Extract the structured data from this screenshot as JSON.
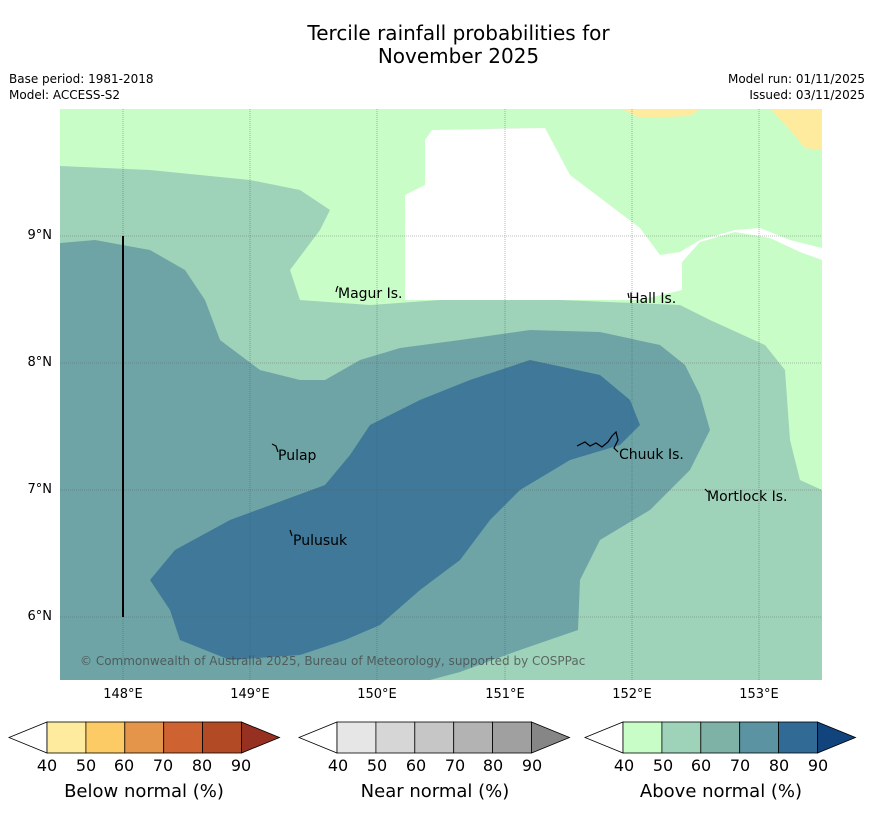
{
  "title_line1": "Tercile rainfall probabilities for",
  "title_line2": "November 2025",
  "base_period": "Base period: 1981-2018",
  "model": "Model: ACCESS-S2",
  "model_run": "Model run: 01/11/2025",
  "issued": "Issued: 03/11/2025",
  "copyright": "© Commonwealth of Australia 2025, Bureau of Meteorology, supported by COSPPac",
  "lat_labels": [
    "9°N",
    "8°N",
    "7°N",
    "6°N"
  ],
  "lon_labels": [
    "148°E",
    "149°E",
    "150°E",
    "151°E",
    "152°E",
    "153°E"
  ],
  "places": [
    "Magur Is.",
    "Hall Is.",
    "Pulap",
    "Chuuk Is.",
    "Mortlock Is.",
    "Pulusuk"
  ],
  "colorbars": [
    {
      "label": "Below normal (%)",
      "ticks": [
        "40",
        "50",
        "60",
        "70",
        "80",
        "90"
      ],
      "colors": [
        "#ffffff",
        "#feeb9e",
        "#fdcb66",
        "#e4954a",
        "#cf6231",
        "#b34a26",
        "#963020"
      ]
    },
    {
      "label": "Near normal (%)",
      "ticks": [
        "40",
        "50",
        "60",
        "70",
        "80",
        "90"
      ],
      "colors": [
        "#ffffff",
        "#e6e6e6",
        "#d6d6d6",
        "#c6c6c6",
        "#b3b3b3",
        "#a0a0a0",
        "#868686"
      ]
    },
    {
      "label": "Above normal (%)",
      "ticks": [
        "40",
        "50",
        "60",
        "70",
        "80",
        "90"
      ],
      "colors": [
        "#ffffff",
        "#c8fdc8",
        "#9fd3b9",
        "#7eb2a6",
        "#5b93a3",
        "#326a96",
        "#11447d"
      ]
    }
  ],
  "map_colors": {
    "above_40_50": "#c8fdc8",
    "above_50_60": "#9fd3b9",
    "above_60_70": "#6ea4a6",
    "above_70_80": "#3f7898",
    "near_40_50": "#e6e6e6",
    "below_40_50": "#feeb9e"
  }
}
